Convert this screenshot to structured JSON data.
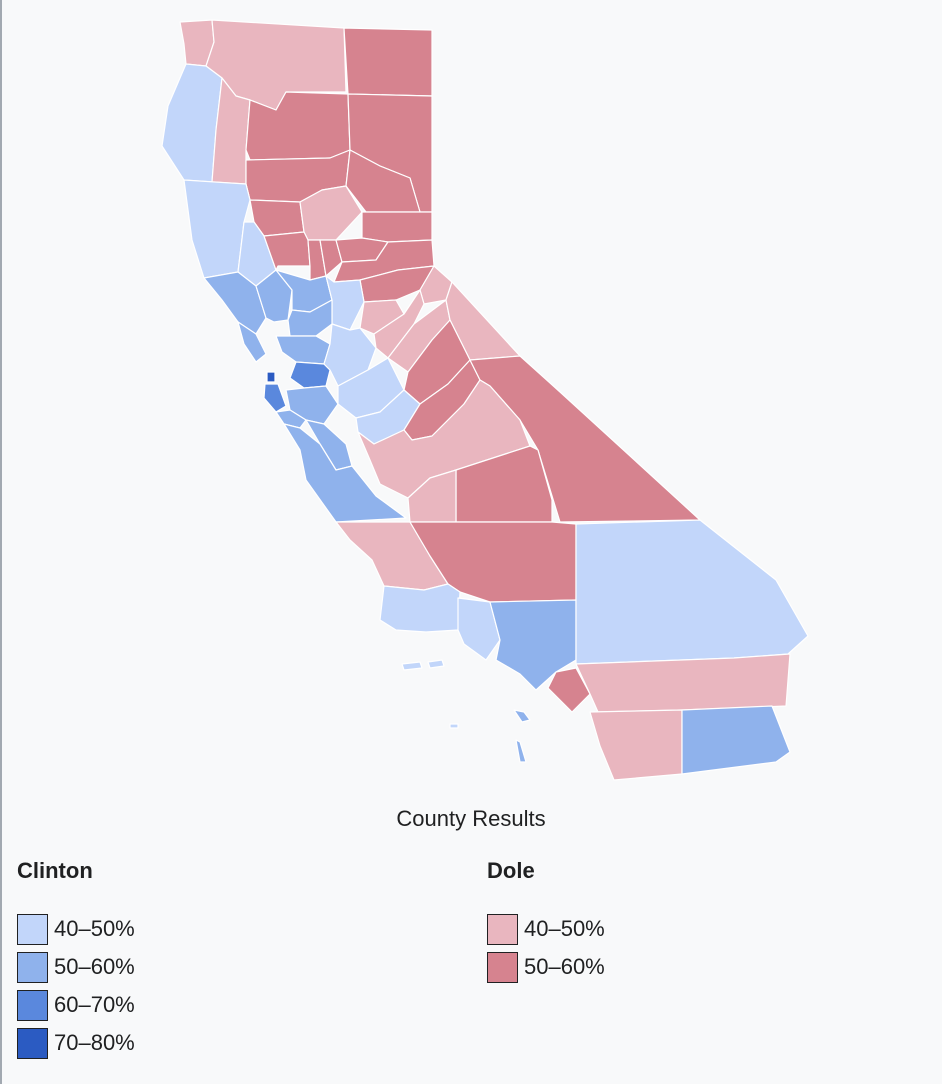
{
  "caption": "County Results",
  "legend": {
    "clinton": {
      "title": "Clinton",
      "items": [
        {
          "label": "40–50%",
          "color": "#c2d6fa"
        },
        {
          "label": "50–60%",
          "color": "#8fb2ec"
        },
        {
          "label": "60–70%",
          "color": "#5a88dd"
        },
        {
          "label": "70–80%",
          "color": "#2b5bc2"
        }
      ]
    },
    "dole": {
      "title": "Dole",
      "items": [
        {
          "label": "40–50%",
          "color": "#e9b6bf"
        },
        {
          "label": "50–60%",
          "color": "#d6838f"
        }
      ]
    }
  }
}
